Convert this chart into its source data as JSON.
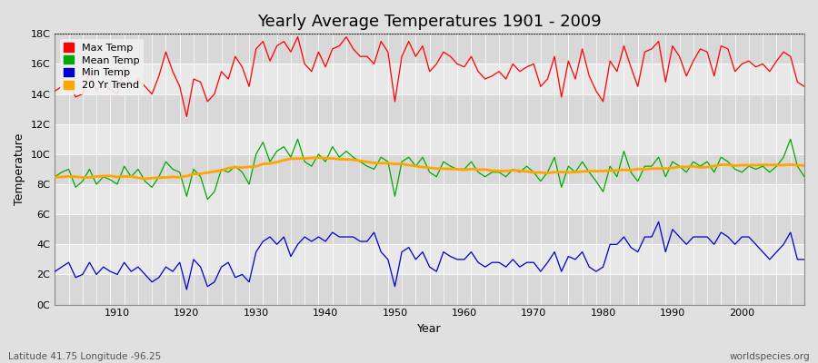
{
  "title": "Yearly Average Temperatures 1901 - 2009",
  "xlabel": "Year",
  "ylabel": "Temperature",
  "lat_lon_label": "Latitude 41.75 Longitude -96.25",
  "source_label": "worldspecies.org",
  "years": [
    1901,
    1902,
    1903,
    1904,
    1905,
    1906,
    1907,
    1908,
    1909,
    1910,
    1911,
    1912,
    1913,
    1914,
    1915,
    1916,
    1917,
    1918,
    1919,
    1920,
    1921,
    1922,
    1923,
    1924,
    1925,
    1926,
    1927,
    1928,
    1929,
    1930,
    1931,
    1932,
    1933,
    1934,
    1935,
    1936,
    1937,
    1938,
    1939,
    1940,
    1941,
    1942,
    1943,
    1944,
    1945,
    1946,
    1947,
    1948,
    1949,
    1950,
    1951,
    1952,
    1953,
    1954,
    1955,
    1956,
    1957,
    1958,
    1959,
    1960,
    1961,
    1962,
    1963,
    1964,
    1965,
    1966,
    1967,
    1968,
    1969,
    1970,
    1971,
    1972,
    1973,
    1974,
    1975,
    1976,
    1977,
    1978,
    1979,
    1980,
    1981,
    1982,
    1983,
    1984,
    1985,
    1986,
    1987,
    1988,
    1989,
    1990,
    1991,
    1992,
    1993,
    1994,
    1995,
    1996,
    1997,
    1998,
    1999,
    2000,
    2001,
    2002,
    2003,
    2004,
    2005,
    2006,
    2007,
    2008,
    2009
  ],
  "max_temp": [
    14.2,
    14.5,
    14.8,
    13.8,
    14.0,
    15.5,
    14.2,
    14.8,
    14.3,
    14.0,
    15.8,
    14.5,
    15.0,
    14.5,
    14.0,
    15.2,
    16.8,
    15.5,
    14.5,
    12.5,
    15.0,
    14.8,
    13.5,
    14.0,
    15.5,
    15.0,
    16.5,
    15.8,
    14.5,
    17.0,
    17.5,
    16.2,
    17.2,
    17.5,
    16.8,
    17.8,
    16.0,
    15.5,
    16.8,
    15.8,
    17.0,
    17.2,
    17.8,
    17.0,
    16.5,
    16.5,
    16.0,
    17.5,
    16.8,
    13.5,
    16.5,
    17.5,
    16.5,
    17.2,
    15.5,
    16.0,
    16.8,
    16.5,
    16.0,
    15.8,
    16.5,
    15.5,
    15.0,
    15.2,
    15.5,
    15.0,
    16.0,
    15.5,
    15.8,
    16.0,
    14.5,
    15.0,
    16.5,
    13.8,
    16.2,
    15.0,
    17.0,
    15.2,
    14.2,
    13.5,
    16.2,
    15.5,
    17.2,
    15.8,
    14.5,
    16.8,
    17.0,
    17.5,
    14.8,
    17.2,
    16.5,
    15.2,
    16.2,
    17.0,
    16.8,
    15.2,
    17.2,
    17.0,
    15.5,
    16.0,
    16.2,
    15.8,
    16.0,
    15.5,
    16.2,
    16.8,
    16.5,
    14.8,
    14.5
  ],
  "mean_temp": [
    8.5,
    8.8,
    9.0,
    7.8,
    8.2,
    9.0,
    8.0,
    8.5,
    8.3,
    8.0,
    9.2,
    8.5,
    9.0,
    8.2,
    7.8,
    8.5,
    9.5,
    9.0,
    8.8,
    7.2,
    9.0,
    8.5,
    7.0,
    7.5,
    9.0,
    8.8,
    9.2,
    8.8,
    8.0,
    10.0,
    10.8,
    9.5,
    10.2,
    10.5,
    9.8,
    11.0,
    9.5,
    9.2,
    10.0,
    9.5,
    10.5,
    9.8,
    10.2,
    9.8,
    9.5,
    9.2,
    9.0,
    9.8,
    9.5,
    7.2,
    9.5,
    9.8,
    9.2,
    9.8,
    8.8,
    8.5,
    9.5,
    9.2,
    9.0,
    9.0,
    9.5,
    8.8,
    8.5,
    8.8,
    8.8,
    8.5,
    9.0,
    8.8,
    9.2,
    8.8,
    8.2,
    8.8,
    9.8,
    7.8,
    9.2,
    8.8,
    9.5,
    8.8,
    8.2,
    7.5,
    9.2,
    8.5,
    10.2,
    8.8,
    8.2,
    9.2,
    9.2,
    9.8,
    8.5,
    9.5,
    9.2,
    8.8,
    9.5,
    9.2,
    9.5,
    8.8,
    9.8,
    9.5,
    9.0,
    8.8,
    9.2,
    9.0,
    9.2,
    8.8,
    9.2,
    9.8,
    11.0,
    9.2,
    8.5
  ],
  "min_temp": [
    2.2,
    2.5,
    2.8,
    1.8,
    2.0,
    2.8,
    2.0,
    2.5,
    2.2,
    2.0,
    2.8,
    2.2,
    2.5,
    2.0,
    1.5,
    1.8,
    2.5,
    2.2,
    2.8,
    1.0,
    3.0,
    2.5,
    1.2,
    1.5,
    2.5,
    2.8,
    1.8,
    2.0,
    1.5,
    3.5,
    4.2,
    4.5,
    4.0,
    4.5,
    3.2,
    4.0,
    4.5,
    4.2,
    4.5,
    4.2,
    4.8,
    4.5,
    4.5,
    4.5,
    4.2,
    4.2,
    4.8,
    3.5,
    3.0,
    1.2,
    3.5,
    3.8,
    3.0,
    3.5,
    2.5,
    2.2,
    3.5,
    3.2,
    3.0,
    3.0,
    3.5,
    2.8,
    2.5,
    2.8,
    2.8,
    2.5,
    3.0,
    2.5,
    2.8,
    2.8,
    2.2,
    2.8,
    3.5,
    2.2,
    3.2,
    3.0,
    3.5,
    2.5,
    2.2,
    2.5,
    4.0,
    4.0,
    4.5,
    3.8,
    3.5,
    4.5,
    4.5,
    5.5,
    3.5,
    5.0,
    4.5,
    4.0,
    4.5,
    4.5,
    4.5,
    4.0,
    4.8,
    4.5,
    4.0,
    4.5,
    4.5,
    4.0,
    3.5,
    3.0,
    3.5,
    4.0,
    4.8,
    3.0,
    3.0
  ],
  "bg_color": "#e0e0e0",
  "plot_bg_color": "#e8e8e8",
  "band_colors": [
    "#d8d8d8",
    "#e8e8e8"
  ],
  "grid_line_color": "#ffffff",
  "max_color": "#ff0000",
  "mean_color": "#00aa00",
  "min_color": "#0000cc",
  "trend_color": "#ffa500",
  "ylim": [
    0,
    18
  ],
  "yticks": [
    0,
    2,
    4,
    6,
    8,
    10,
    12,
    14,
    16,
    18
  ],
  "ytick_labels": [
    "0C",
    "2C",
    "4C",
    "6C",
    "8C",
    "10C",
    "12C",
    "14C",
    "16C",
    "18C"
  ],
  "xlim": [
    1901,
    2009
  ],
  "xticks": [
    1910,
    1920,
    1930,
    1940,
    1950,
    1960,
    1970,
    1980,
    1990,
    2000
  ],
  "trend_window": 20,
  "title_fontsize": 13,
  "axis_label_fontsize": 9,
  "tick_fontsize": 8,
  "legend_fontsize": 8
}
